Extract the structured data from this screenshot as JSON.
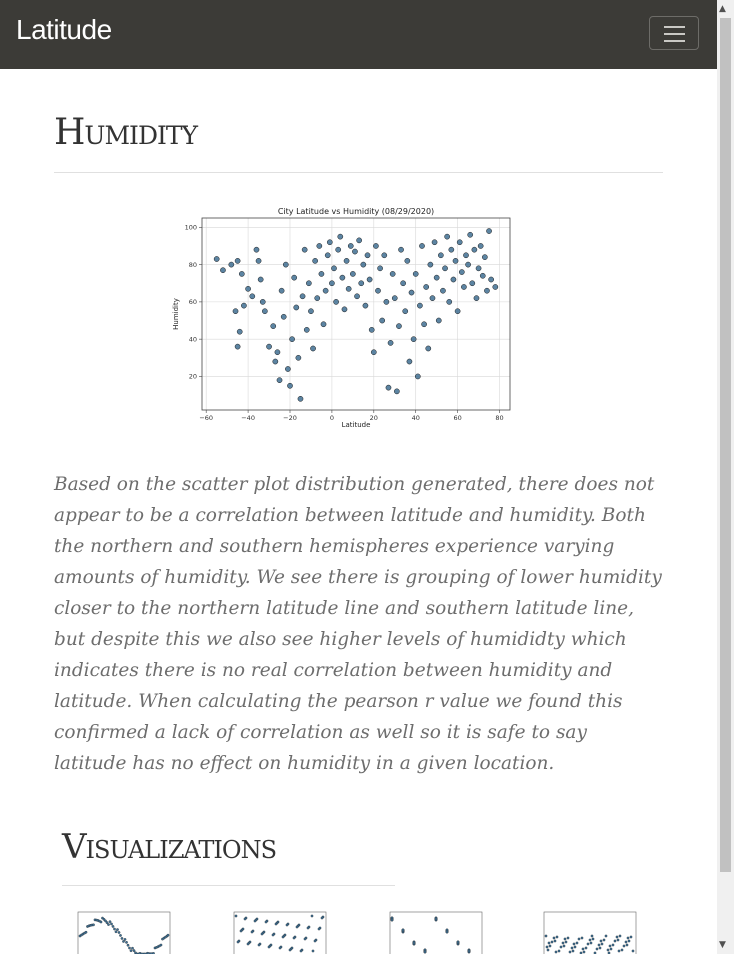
{
  "navbar": {
    "brand": "Latitude",
    "toggle_icon": "hamburger-menu-icon"
  },
  "page": {
    "heading": "Humidity",
    "description": "Based on the scatter plot distribution generated, there does not appear to be a correlation between latitude and humidity. Both the northern and southern hemispheres experience varying amounts of humidity. We see there is grouping of lower humidity closer to the northern latitude line and southern latitude line, but despite this we also see higher levels of humididty which indicates there is no real correlation between humidity and latitude. When calculating the pearson r value we found this confirmed a lack of correlation as well so it is safe to say latitude has no effect on humidity in a given location."
  },
  "visualizations": {
    "heading": "Visualizations",
    "thumbnails": [
      "temperature",
      "humidity",
      "cloudiness",
      "wind-speed"
    ]
  },
  "colors": {
    "navbar_bg": "#3c3b37",
    "marker_fill": "#3f6f92",
    "marker_edge": "#1b1b1b"
  },
  "chart_data": {
    "type": "scatter",
    "title": "City Latitude vs Humidity (08/29/2020)",
    "xlabel": "Latitude",
    "ylabel": "Humidity",
    "xlim": [
      -62,
      85
    ],
    "ylim": [
      2,
      105
    ],
    "xticks": [
      -60,
      -40,
      -20,
      0,
      20,
      40,
      60,
      80
    ],
    "yticks": [
      20,
      40,
      60,
      80,
      100
    ],
    "grid": true,
    "points": [
      [
        -55,
        83
      ],
      [
        -52,
        77
      ],
      [
        -48,
        80
      ],
      [
        -45,
        82
      ],
      [
        -43,
        75
      ],
      [
        -46,
        55
      ],
      [
        -44,
        44
      ],
      [
        -42,
        58
      ],
      [
        -45,
        36
      ],
      [
        -40,
        67
      ],
      [
        -38,
        63
      ],
      [
        -36,
        88
      ],
      [
        -35,
        82
      ],
      [
        -34,
        72
      ],
      [
        -33,
        60
      ],
      [
        -32,
        55
      ],
      [
        -30,
        36
      ],
      [
        -28,
        47
      ],
      [
        -27,
        28
      ],
      [
        -26,
        33
      ],
      [
        -25,
        18
      ],
      [
        -24,
        66
      ],
      [
        -23,
        52
      ],
      [
        -22,
        80
      ],
      [
        -21,
        24
      ],
      [
        -20,
        15
      ],
      [
        -19,
        40
      ],
      [
        -18,
        73
      ],
      [
        -17,
        57
      ],
      [
        -16,
        30
      ],
      [
        -15,
        8
      ],
      [
        -14,
        63
      ],
      [
        -13,
        88
      ],
      [
        -12,
        45
      ],
      [
        -11,
        70
      ],
      [
        -10,
        55
      ],
      [
        -9,
        35
      ],
      [
        -8,
        82
      ],
      [
        -7,
        62
      ],
      [
        -6,
        90
      ],
      [
        -5,
        75
      ],
      [
        -4,
        48
      ],
      [
        -3,
        66
      ],
      [
        -2,
        85
      ],
      [
        -1,
        92
      ],
      [
        0,
        70
      ],
      [
        1,
        78
      ],
      [
        2,
        60
      ],
      [
        3,
        88
      ],
      [
        4,
        95
      ],
      [
        5,
        73
      ],
      [
        6,
        56
      ],
      [
        7,
        82
      ],
      [
        8,
        67
      ],
      [
        9,
        90
      ],
      [
        10,
        75
      ],
      [
        11,
        87
      ],
      [
        12,
        63
      ],
      [
        13,
        93
      ],
      [
        14,
        70
      ],
      [
        15,
        80
      ],
      [
        16,
        58
      ],
      [
        17,
        85
      ],
      [
        18,
        72
      ],
      [
        19,
        45
      ],
      [
        20,
        33
      ],
      [
        21,
        90
      ],
      [
        22,
        66
      ],
      [
        23,
        78
      ],
      [
        24,
        50
      ],
      [
        25,
        85
      ],
      [
        26,
        60
      ],
      [
        27,
        14
      ],
      [
        28,
        38
      ],
      [
        29,
        75
      ],
      [
        30,
        62
      ],
      [
        31,
        12
      ],
      [
        32,
        47
      ],
      [
        33,
        88
      ],
      [
        34,
        70
      ],
      [
        35,
        55
      ],
      [
        36,
        82
      ],
      [
        37,
        28
      ],
      [
        38,
        65
      ],
      [
        39,
        40
      ],
      [
        40,
        75
      ],
      [
        41,
        20
      ],
      [
        42,
        58
      ],
      [
        43,
        90
      ],
      [
        44,
        48
      ],
      [
        45,
        68
      ],
      [
        46,
        35
      ],
      [
        47,
        80
      ],
      [
        48,
        62
      ],
      [
        49,
        92
      ],
      [
        50,
        73
      ],
      [
        51,
        50
      ],
      [
        52,
        85
      ],
      [
        53,
        66
      ],
      [
        54,
        78
      ],
      [
        55,
        95
      ],
      [
        56,
        60
      ],
      [
        57,
        88
      ],
      [
        58,
        72
      ],
      [
        59,
        82
      ],
      [
        60,
        55
      ],
      [
        61,
        92
      ],
      [
        62,
        76
      ],
      [
        63,
        68
      ],
      [
        64,
        85
      ],
      [
        65,
        80
      ],
      [
        66,
        96
      ],
      [
        67,
        70
      ],
      [
        68,
        88
      ],
      [
        69,
        62
      ],
      [
        70,
        78
      ],
      [
        71,
        90
      ],
      [
        72,
        74
      ],
      [
        73,
        84
      ],
      [
        74,
        66
      ],
      [
        75,
        98
      ],
      [
        76,
        72
      ],
      [
        78,
        68
      ]
    ]
  }
}
